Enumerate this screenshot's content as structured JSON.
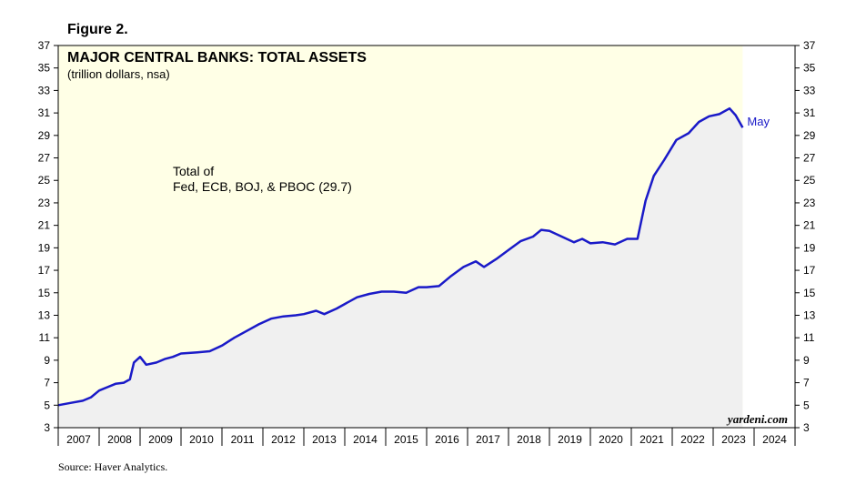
{
  "figure_label": "Figure 2.",
  "source": "Source: Haver Analytics.",
  "brand": "yardeni.com",
  "colors": {
    "background": "#ffffe6",
    "area_fill": "#f0f0f0",
    "line": "#1a1ac8",
    "forecast_band": "#ffffff"
  },
  "chart_data": {
    "type": "area",
    "title": "MAJOR CENTRAL BANKS: TOTAL ASSETS",
    "subtitle": "(trillion dollars, nsa)",
    "annotation_line1": "Total of",
    "annotation_line2": "Fed, ECB, BOJ, & PBOC (29.7)",
    "last_point_label": "May",
    "ylim": [
      3,
      37
    ],
    "yticks": [
      3,
      5,
      7,
      9,
      11,
      13,
      15,
      17,
      19,
      21,
      23,
      25,
      27,
      29,
      31,
      33,
      35,
      37
    ],
    "xlim": [
      2007.0,
      2025.0
    ],
    "xticks": [
      "2007",
      "2008",
      "2009",
      "2010",
      "2011",
      "2012",
      "2013",
      "2014",
      "2015",
      "2016",
      "2017",
      "2018",
      "2019",
      "2020",
      "2021",
      "2022",
      "2023",
      "2024"
    ],
    "grid": false,
    "series": [
      {
        "values": [
          [
            2007.0,
            5.0
          ],
          [
            2007.3,
            5.2
          ],
          [
            2007.6,
            5.4
          ],
          [
            2007.8,
            5.7
          ],
          [
            2008.0,
            6.3
          ],
          [
            2008.2,
            6.6
          ],
          [
            2008.4,
            6.9
          ],
          [
            2008.6,
            7.0
          ],
          [
            2008.75,
            7.3
          ],
          [
            2008.85,
            8.8
          ],
          [
            2009.0,
            9.3
          ],
          [
            2009.15,
            8.6
          ],
          [
            2009.4,
            8.8
          ],
          [
            2009.6,
            9.1
          ],
          [
            2009.8,
            9.3
          ],
          [
            2010.0,
            9.6
          ],
          [
            2010.4,
            9.7
          ],
          [
            2010.7,
            9.8
          ],
          [
            2011.0,
            10.3
          ],
          [
            2011.3,
            11.0
          ],
          [
            2011.6,
            11.6
          ],
          [
            2011.9,
            12.2
          ],
          [
            2012.2,
            12.7
          ],
          [
            2012.5,
            12.9
          ],
          [
            2012.8,
            13.0
          ],
          [
            2013.0,
            13.1
          ],
          [
            2013.3,
            13.4
          ],
          [
            2013.5,
            13.1
          ],
          [
            2013.8,
            13.6
          ],
          [
            2014.0,
            14.0
          ],
          [
            2014.3,
            14.6
          ],
          [
            2014.6,
            14.9
          ],
          [
            2014.9,
            15.1
          ],
          [
            2015.2,
            15.1
          ],
          [
            2015.5,
            15.0
          ],
          [
            2015.8,
            15.5
          ],
          [
            2016.0,
            15.5
          ],
          [
            2016.3,
            15.6
          ],
          [
            2016.6,
            16.5
          ],
          [
            2016.9,
            17.3
          ],
          [
            2017.2,
            17.8
          ],
          [
            2017.4,
            17.3
          ],
          [
            2017.7,
            18.0
          ],
          [
            2018.0,
            18.8
          ],
          [
            2018.3,
            19.6
          ],
          [
            2018.6,
            20.0
          ],
          [
            2018.8,
            20.6
          ],
          [
            2019.0,
            20.5
          ],
          [
            2019.3,
            20.0
          ],
          [
            2019.6,
            19.5
          ],
          [
            2019.8,
            19.8
          ],
          [
            2020.0,
            19.4
          ],
          [
            2020.3,
            19.5
          ],
          [
            2020.6,
            19.3
          ],
          [
            2020.9,
            19.8
          ],
          [
            2021.15,
            19.8
          ],
          [
            2021.35,
            23.2
          ],
          [
            2021.55,
            25.4
          ],
          [
            2021.8,
            26.8
          ],
          [
            2022.1,
            28.6
          ],
          [
            2022.4,
            29.2
          ],
          [
            2022.65,
            30.2
          ],
          [
            2022.9,
            30.7
          ],
          [
            2023.15,
            30.9
          ],
          [
            2023.4,
            31.4
          ],
          [
            2023.55,
            30.8
          ],
          [
            2023.72,
            29.7
          ]
        ]
      }
    ]
  }
}
